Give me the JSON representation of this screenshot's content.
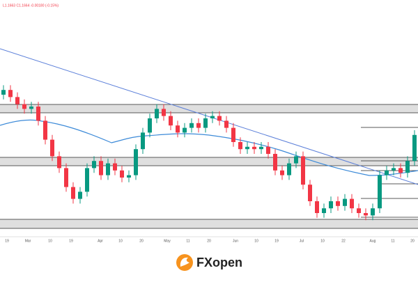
{
  "chart_data": {
    "type": "candlestick",
    "header": "L1.1663 C1.1664 -0.00180 (-0.15%)",
    "brand": "FXopen",
    "x_labels": [
      "19",
      "Mar",
      "10",
      "19",
      "Apr",
      "10",
      "20",
      "May",
      "11",
      "20",
      "Jun",
      "10",
      "19",
      "Jul",
      "10",
      "22",
      "Aug",
      "11",
      "20"
    ],
    "ylim": [
      0,
      100
    ],
    "up_color": "#089981",
    "down_color": "#f23645",
    "open": [
      60,
      62,
      59,
      56,
      54,
      55,
      49,
      41,
      34,
      29,
      21,
      16,
      19,
      29,
      32,
      26,
      31,
      28,
      25,
      26,
      37,
      44,
      50,
      54,
      51,
      47,
      44,
      46,
      48,
      46,
      50,
      51,
      49,
      46,
      40,
      37,
      38,
      37,
      38,
      35,
      28,
      26,
      31,
      34,
      22,
      15,
      10,
      12,
      15,
      13,
      16,
      12,
      10,
      9,
      12,
      26,
      28,
      29,
      27,
      32
    ],
    "close": [
      62,
      59,
      56,
      54,
      55,
      49,
      41,
      34,
      29,
      21,
      16,
      19,
      29,
      32,
      26,
      31,
      28,
      25,
      26,
      37,
      44,
      50,
      54,
      51,
      47,
      44,
      46,
      48,
      46,
      50,
      51,
      49,
      46,
      40,
      37,
      38,
      37,
      38,
      35,
      28,
      26,
      31,
      34,
      22,
      15,
      10,
      12,
      15,
      13,
      16,
      12,
      10,
      9,
      12,
      26,
      28,
      29,
      27,
      32,
      43
    ],
    "high": [
      64,
      64,
      61,
      58,
      57,
      57,
      51,
      43,
      36,
      31,
      23,
      21,
      31,
      34,
      34,
      33,
      33,
      30,
      28,
      39,
      46,
      52,
      56,
      56,
      53,
      49,
      48,
      50,
      50,
      52,
      53,
      53,
      51,
      48,
      42,
      40,
      40,
      40,
      40,
      37,
      30,
      33,
      36,
      36,
      24,
      17,
      14,
      17,
      17,
      18,
      18,
      14,
      12,
      14,
      28,
      30,
      31,
      31,
      34,
      45
    ],
    "low": [
      58,
      57,
      54,
      52,
      52,
      47,
      39,
      32,
      27,
      19,
      14,
      14,
      17,
      27,
      24,
      24,
      26,
      23,
      23,
      24,
      35,
      42,
      48,
      49,
      45,
      42,
      42,
      44,
      44,
      44,
      48,
      47,
      44,
      38,
      35,
      35,
      35,
      35,
      33,
      26,
      24,
      24,
      29,
      20,
      13,
      8,
      8,
      10,
      11,
      11,
      10,
      8,
      7,
      7,
      10,
      24,
      26,
      25,
      25,
      30
    ]
  }
}
